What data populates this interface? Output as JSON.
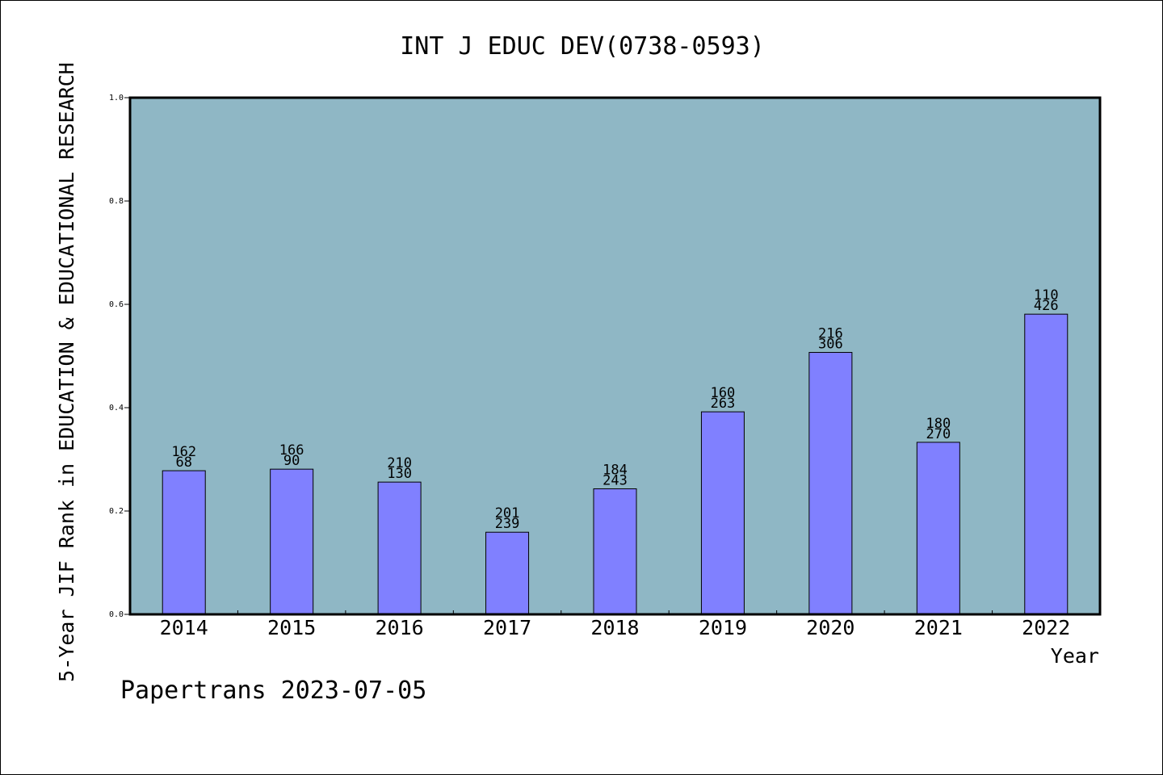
{
  "chart_data": {
    "type": "bar",
    "title": "INT J EDUC DEV(0738-0593)",
    "xlabel": "Year",
    "ylabel": "5-Year JIF Rank in EDUCATION & EDUCATIONAL RESEARCH",
    "footer": "Papertrans 2023-07-05",
    "categories": [
      "2014",
      "2015",
      "2016",
      "2017",
      "2018",
      "2019",
      "2020",
      "2021",
      "2022"
    ],
    "values": [
      0.278,
      0.281,
      0.256,
      0.159,
      0.243,
      0.392,
      0.507,
      0.333,
      0.581
    ],
    "rank_labels": [
      "162",
      "166",
      "210",
      "201",
      "184",
      "160",
      "216",
      "180",
      "110"
    ],
    "total_labels": [
      "68",
      "90",
      "130",
      "239",
      "243",
      "263",
      "306",
      "270",
      "426"
    ],
    "ylim": [
      0,
      1.0
    ],
    "yticks": [
      "0.0",
      "0.2",
      "0.4",
      "0.6",
      "0.8",
      "1.0"
    ],
    "grid": false,
    "colors": {
      "plot_background": "#8fb7c5",
      "bar_fill": "#8080ff",
      "bar_stroke": "#000000"
    }
  }
}
